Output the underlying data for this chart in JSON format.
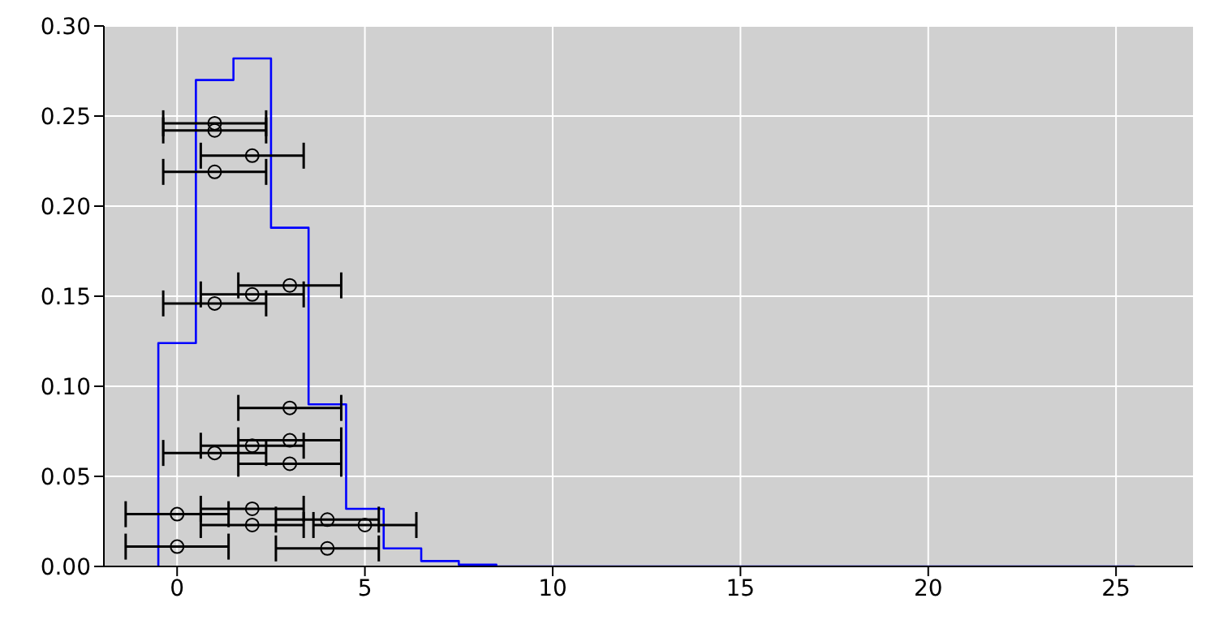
{
  "chart_data": {
    "type": "histogram",
    "bins": [
      -0.5,
      0.5,
      1.5,
      2.5,
      3.5,
      4.5,
      5.5,
      6.5,
      7.5,
      8.5,
      9.5,
      10.5,
      11.5,
      12.5,
      13.5,
      14.5,
      15.5,
      16.5,
      17.5,
      18.5,
      19.5,
      20.5,
      21.5,
      22.5,
      23.5,
      24.5,
      25.5
    ],
    "series": [
      {
        "color": "#0000ff",
        "values": [
          0.124,
          0.27,
          0.282,
          0.188,
          0.09,
          0.032,
          0.01,
          0.003,
          0.001,
          0,
          0,
          0,
          0,
          0,
          0,
          0,
          0,
          0,
          0,
          0,
          0,
          0,
          0,
          0,
          0,
          0
        ]
      },
      {
        "type": "scatter",
        "color": "#000000",
        "x": [
          1,
          1,
          2,
          1,
          3,
          2,
          1,
          3,
          3,
          2,
          1,
          3,
          0,
          2,
          4,
          2,
          5,
          0,
          4
        ],
        "values": [
          0.246,
          0.242,
          0.228,
          0.219,
          0.156,
          0.151,
          0.146,
          0.088,
          0.07,
          0.067,
          0.063,
          0.057,
          0.029,
          0.032,
          0.026,
          0.023,
          0.023,
          0.011,
          0.01
        ],
        "xerrors": [
          1.37,
          1.37,
          1.37,
          1.37,
          1.37,
          1.37,
          1.37,
          1.37,
          1.37,
          1.37,
          1.37,
          1.37,
          1.37,
          1.37,
          1.37,
          1.37,
          1.37,
          1.37,
          1.37
        ]
      }
    ],
    "xlim": [
      -1.95,
      27.05
    ],
    "xticks": [
      0,
      5,
      10,
      15,
      20,
      25
    ],
    "ylim": [
      0,
      0.3
    ],
    "yticks": [
      {
        "value": 0,
        "label": "0.00"
      },
      {
        "value": 0.05,
        "label": "0.05"
      },
      {
        "value": 0.1,
        "label": "0.10"
      },
      {
        "value": 0.15,
        "label": "0.15"
      },
      {
        "value": 0.2,
        "label": "0.20"
      },
      {
        "value": 0.25,
        "label": "0.25"
      },
      {
        "value": 0.3,
        "label": "0.30"
      }
    ],
    "grid": true,
    "marker": "circle"
  }
}
